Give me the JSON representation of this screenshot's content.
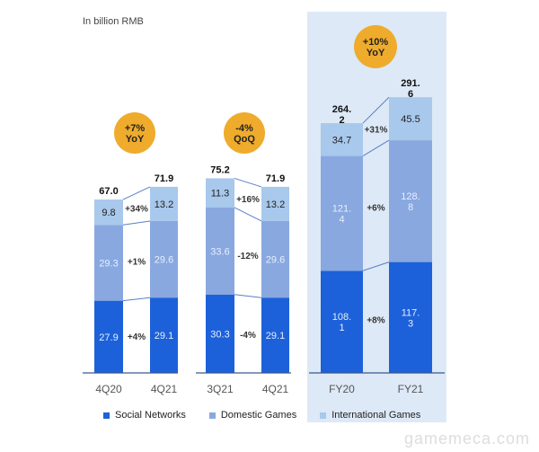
{
  "unit_label": "In billion RMB",
  "watermark": "gamemeca.com",
  "colors": {
    "Social Networks": "#1c61d9",
    "Domestic Games": "#89a8e0",
    "International Games": "#a8c8ec",
    "badge": "#efab2c",
    "highlight": "#dde9f6"
  },
  "chart_data": [
    {
      "type": "bar",
      "stacked": true,
      "badge": [
        "+7%",
        "YoY"
      ],
      "categories": [
        "4Q20",
        "4Q21"
      ],
      "series": [
        {
          "name": "Social Networks",
          "values": [
            27.9,
            29.1
          ],
          "labels": [
            "27.9",
            "29.1"
          ]
        },
        {
          "name": "Domestic Games",
          "values": [
            29.3,
            29.6
          ],
          "labels": [
            "29.3",
            "29.6"
          ]
        },
        {
          "name": "International Games",
          "values": [
            9.8,
            13.2
          ],
          "labels": [
            "9.8",
            "13.2"
          ]
        }
      ],
      "totals": [
        "67.0",
        "71.9"
      ],
      "changes": [
        "+4%",
        "+1%",
        "+34%"
      ]
    },
    {
      "type": "bar",
      "stacked": true,
      "badge": [
        "-4%",
        "QoQ"
      ],
      "categories": [
        "3Q21",
        "4Q21"
      ],
      "series": [
        {
          "name": "Social Networks",
          "values": [
            30.3,
            29.1
          ],
          "labels": [
            "30.3",
            "29.1"
          ]
        },
        {
          "name": "Domestic Games",
          "values": [
            33.6,
            29.6
          ],
          "labels": [
            "33.6",
            "29.6"
          ]
        },
        {
          "name": "International Games",
          "values": [
            11.3,
            13.2
          ],
          "labels": [
            "11.3",
            "13.2"
          ]
        }
      ],
      "totals": [
        "75.2",
        "71.9"
      ],
      "changes": [
        "-4%",
        "-12%",
        "+16%"
      ]
    },
    {
      "type": "bar",
      "stacked": true,
      "badge": [
        "+10%",
        "YoY"
      ],
      "highlighted": true,
      "categories": [
        "FY20",
        "FY21"
      ],
      "series": [
        {
          "name": "Social Networks",
          "values": [
            108.1,
            117.3
          ],
          "labels": [
            "108.\n1",
            "117.\n3"
          ]
        },
        {
          "name": "Domestic Games",
          "values": [
            121.4,
            128.8
          ],
          "labels": [
            "121.\n4",
            "128.\n8"
          ]
        },
        {
          "name": "International Games",
          "values": [
            34.7,
            45.5
          ],
          "labels": [
            "34.7",
            "45.5"
          ]
        }
      ],
      "totals": [
        "264.\n2",
        "291.\n6"
      ],
      "changes": [
        "+8%",
        "+6%",
        "+31%"
      ]
    }
  ],
  "legend": [
    "Social Networks",
    "Domestic Games",
    "International Games"
  ]
}
